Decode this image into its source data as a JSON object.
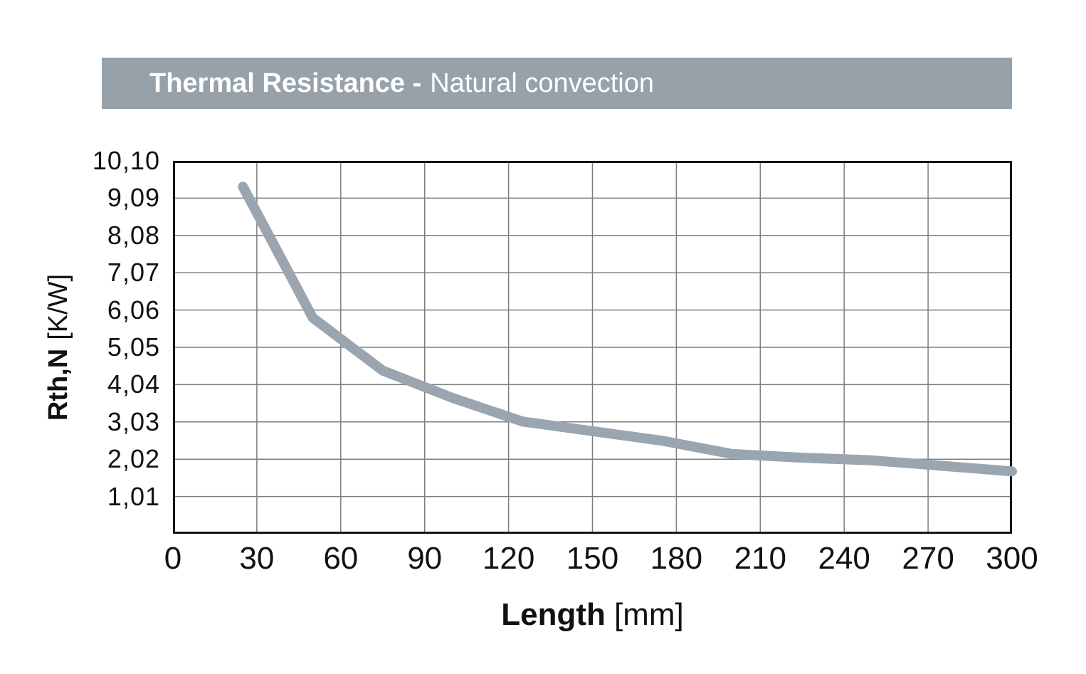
{
  "title_bar": {
    "bold": "Thermal Resistance -",
    "regular": "Natural convection",
    "bg_color": "#97a1a9",
    "text_color": "#ffffff"
  },
  "y_axis": {
    "label_bold": "Rth,N",
    "label_unit": "[K/W]",
    "tick_labels": [
      "10,10",
      "9,09",
      "8,08",
      "7,07",
      "6,06",
      "5,05",
      "4,04",
      "3,03",
      "2,02",
      "1,01"
    ],
    "min": 0,
    "max": 10.1,
    "tick_step": 1.01
  },
  "x_axis": {
    "label_bold": "Length",
    "label_unit": "[mm]",
    "tick_labels": [
      "0",
      "30",
      "60",
      "90",
      "120",
      "150",
      "180",
      "210",
      "240",
      "270",
      "300"
    ],
    "min": 0,
    "max": 300,
    "tick_step": 30
  },
  "chart_data": {
    "type": "line",
    "title": "Thermal Resistance - Natural convection",
    "xlabel": "Length [mm]",
    "ylabel": "Rth,N [K/W]",
    "xlim": [
      0,
      300
    ],
    "ylim": [
      0,
      10.1
    ],
    "grid": true,
    "legend": "none",
    "x": [
      25,
      50,
      75,
      100,
      125,
      150,
      175,
      200,
      225,
      250,
      275,
      300
    ],
    "y": [
      9.4,
      5.85,
      4.42,
      3.68,
      3.04,
      2.78,
      2.52,
      2.16,
      2.06,
      1.99,
      1.84,
      1.69
    ],
    "line_color": "#9aa5af",
    "line_width": 14,
    "gridline_color": "#7d7d7d",
    "frame_color": "#161616"
  }
}
